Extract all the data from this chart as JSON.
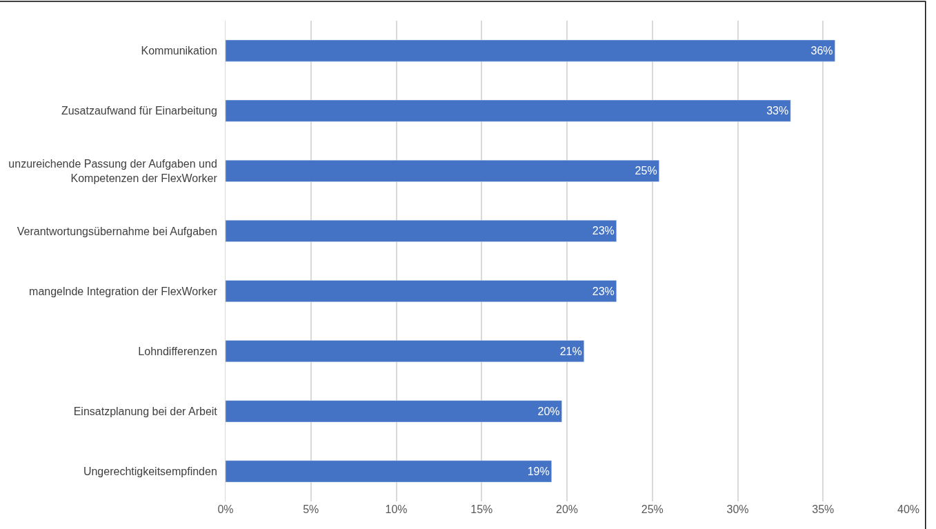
{
  "chart_data": {
    "type": "bar",
    "orientation": "horizontal",
    "categories": [
      "Kommunikation",
      "Zusatzaufwand für Einarbeitung",
      "unzureichende Passung der Aufgaben und Kompetenzen der FlexWorker",
      "Verantwortungsübernahme bei Aufgaben",
      "mangelnde Integration der FlexWorker",
      "Lohndifferenzen",
      "Einsatzplanung bei der Arbeit",
      "Ungerechtigkeitsempfinden"
    ],
    "values": [
      35.7,
      33.1,
      25.4,
      22.9,
      22.9,
      21.0,
      19.7,
      19.1
    ],
    "value_labels": [
      "36%",
      "33%",
      "25%",
      "23%",
      "23%",
      "21%",
      "20%",
      "19%"
    ],
    "color": "#4472c4",
    "xlim": [
      0,
      40
    ],
    "xticks": [
      {
        "value": 0,
        "label": "0%"
      },
      {
        "value": 5,
        "label": "5%"
      },
      {
        "value": 10,
        "label": "10%"
      },
      {
        "value": 15,
        "label": "15%"
      },
      {
        "value": 20,
        "label": "20%"
      },
      {
        "value": 25,
        "label": "25%"
      },
      {
        "value": 30,
        "label": "30%"
      },
      {
        "value": 35,
        "label": "35%"
      },
      {
        "value": 40,
        "label": "40%"
      }
    ],
    "grid": "x",
    "legend": false
  }
}
